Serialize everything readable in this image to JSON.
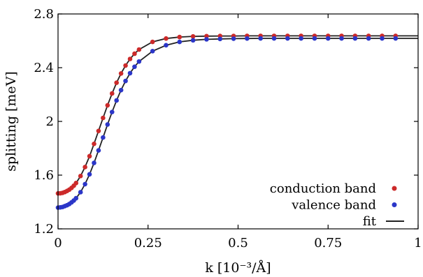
{
  "chart_data": {
    "type": "scatter",
    "xlabel": "k [10⁻³/Å]",
    "ylabel": "splitting [meV]",
    "xlim": [
      0,
      1
    ],
    "ylim": [
      1.2,
      2.8
    ],
    "x_ticks": [
      0,
      0.25,
      0.5,
      0.75,
      1
    ],
    "x_tick_labels": [
      "0",
      "0.25",
      "0.5",
      "0.75",
      "1"
    ],
    "y_ticks": [
      1.2,
      1.6,
      2.0,
      2.4,
      2.8
    ],
    "y_tick_labels": [
      "1.2",
      "1.6",
      "2",
      "2.4",
      "2.8"
    ],
    "grid": false,
    "legend_position": "bottom-right",
    "x": [
      0.0,
      0.00625,
      0.0125,
      0.01875,
      0.025,
      0.03125,
      0.0375,
      0.04375,
      0.05,
      0.0625,
      0.075,
      0.0875,
      0.1,
      0.1125,
      0.125,
      0.1375,
      0.15,
      0.1625,
      0.175,
      0.1875,
      0.2,
      0.2125,
      0.225,
      0.2625,
      0.3,
      0.3375,
      0.375,
      0.4125,
      0.45,
      0.4875,
      0.525,
      0.5625,
      0.6,
      0.6375,
      0.675,
      0.7125,
      0.75,
      0.7875,
      0.825,
      0.8625,
      0.9,
      0.9375
    ],
    "series": [
      {
        "name": "conduction band",
        "color": "#cc2a2a",
        "marker": "circle",
        "values": [
          1.464,
          1.465,
          1.468,
          1.474,
          1.482,
          1.492,
          1.505,
          1.521,
          1.541,
          1.593,
          1.66,
          1.741,
          1.833,
          1.929,
          2.026,
          2.12,
          2.208,
          2.288,
          2.357,
          2.416,
          2.465,
          2.504,
          2.535,
          2.592,
          2.617,
          2.628,
          2.633,
          2.635,
          2.636,
          2.636,
          2.637,
          2.637,
          2.637,
          2.637,
          2.637,
          2.637,
          2.637,
          2.637,
          2.637,
          2.637,
          2.637,
          2.637
        ]
      },
      {
        "name": "valence band",
        "color": "#2b36c8",
        "marker": "circle",
        "values": [
          1.358,
          1.36,
          1.363,
          1.369,
          1.376,
          1.385,
          1.397,
          1.411,
          1.428,
          1.473,
          1.533,
          1.606,
          1.691,
          1.784,
          1.88,
          1.977,
          2.07,
          2.156,
          2.233,
          2.301,
          2.359,
          2.407,
          2.446,
          2.523,
          2.567,
          2.592,
          2.604,
          2.611,
          2.614,
          2.616,
          2.617,
          2.618,
          2.618,
          2.618,
          2.618,
          2.618,
          2.618,
          2.618,
          2.618,
          2.618,
          2.618,
          2.618
        ]
      }
    ],
    "fit_label": "fit",
    "fit_color": "#222222"
  }
}
